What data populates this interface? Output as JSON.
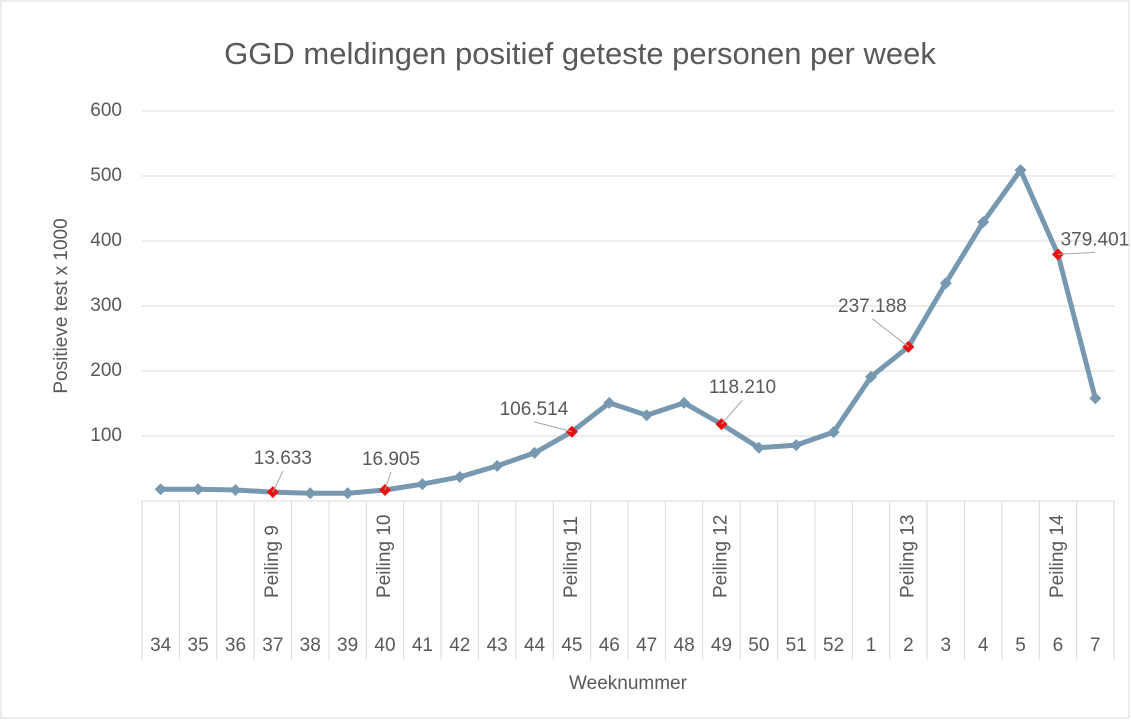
{
  "chart_data": {
    "type": "line",
    "title": "GGD meldingen positief geteste personen per week",
    "y_label": "Positieve test x 1000",
    "x_label": "Weeknummer",
    "categories": [
      "34",
      "35",
      "36",
      "37",
      "38",
      "39",
      "40",
      "41",
      "42",
      "43",
      "44",
      "45",
      "46",
      "47",
      "48",
      "49",
      "50",
      "51",
      "52",
      "1",
      "2",
      "3",
      "4",
      "5",
      "6",
      "7"
    ],
    "category_groups": [
      null,
      null,
      null,
      "Peiling 9",
      null,
      null,
      "Peiling 10",
      null,
      null,
      null,
      null,
      "Peiling 11",
      null,
      null,
      null,
      "Peiling 12",
      null,
      null,
      null,
      null,
      "Peiling 13",
      null,
      null,
      null,
      "Peiling 14",
      null
    ],
    "series": [
      {
        "color": "#7698b0",
        "highlight_color": "#e8110f",
        "values": [
          18,
          18,
          17,
          13.633,
          12,
          12,
          16.905,
          26,
          37,
          54,
          74,
          106.514,
          151,
          132,
          151,
          118.21,
          82,
          86,
          106,
          191,
          237.188,
          335,
          429,
          509,
          379.401,
          158
        ],
        "value_labels": [
          null,
          null,
          null,
          "13.633",
          null,
          null,
          "16.905",
          null,
          null,
          null,
          null,
          "106.514",
          null,
          null,
          null,
          "118.210",
          null,
          null,
          null,
          null,
          "237.188",
          null,
          null,
          null,
          "379.401",
          null
        ]
      }
    ],
    "ylim": [
      0,
      600
    ],
    "yticks": [
      100,
      200,
      300,
      400,
      500,
      600
    ],
    "grid": true
  }
}
